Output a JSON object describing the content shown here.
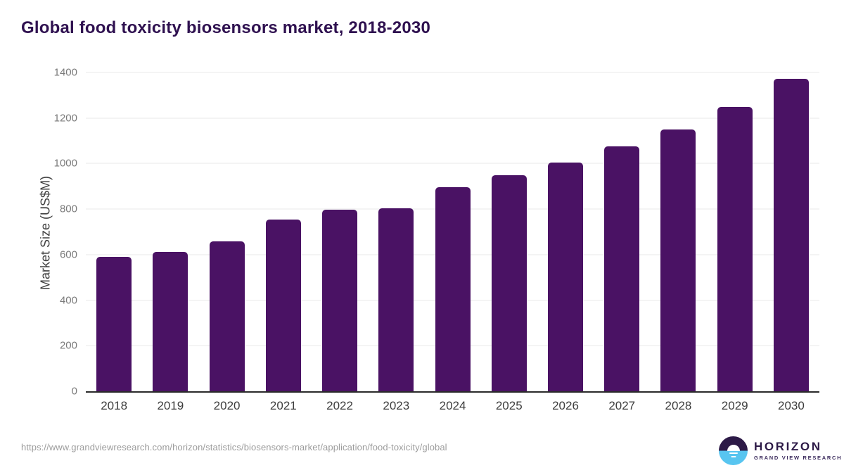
{
  "page": {
    "title": "Global food toxicity biosensors market, 2018-2030",
    "source_url": "https://www.grandviewresearch.com/horizon/statistics/biosensors-market/application/food-toxicity/global"
  },
  "logo": {
    "name": "HORIZON",
    "subtitle": "GRAND VIEW RESEARCH",
    "icon": "sunrise-horizon-icon",
    "purple": "#2d1a47",
    "blue": "#58c5f0"
  },
  "chart_data": {
    "type": "bar",
    "title": "Global food toxicity biosensors market, 2018-2030",
    "categories": [
      "2018",
      "2019",
      "2020",
      "2021",
      "2022",
      "2023",
      "2024",
      "2025",
      "2026",
      "2027",
      "2028",
      "2029",
      "2030"
    ],
    "values": [
      590,
      611,
      658,
      753,
      798,
      804,
      897,
      948,
      1004,
      1075,
      1149,
      1250,
      1372
    ],
    "xlabel": "",
    "ylabel": "Market Size (US$M)",
    "ylim": [
      0,
      1400
    ],
    "yticks": [
      0,
      200,
      400,
      600,
      800,
      1000,
      1200,
      1400
    ],
    "grid": "horizontal",
    "legend": "none",
    "bar_color": "#4a1264"
  }
}
